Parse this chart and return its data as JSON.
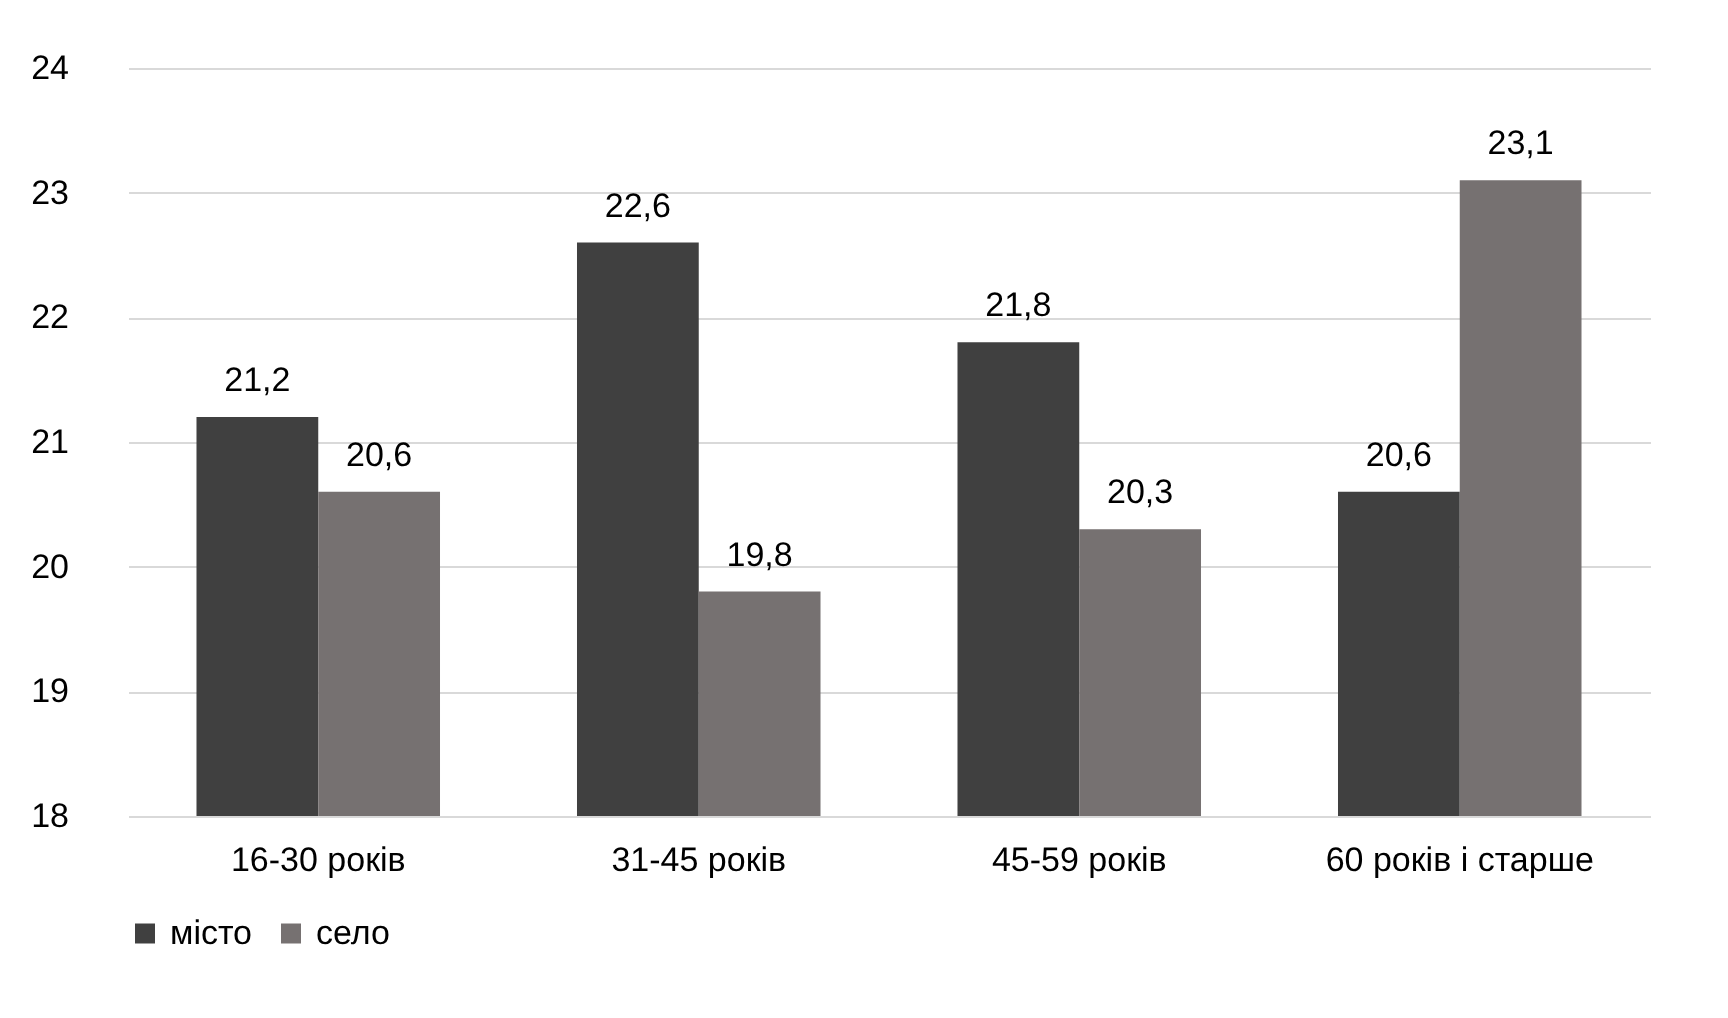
{
  "chart_data": {
    "type": "bar",
    "categories": [
      "16-30 років",
      "31-45 років",
      "45-59 років",
      "60 років і старше"
    ],
    "series": [
      {
        "name": "місто",
        "color": "#404040",
        "values": [
          21.2,
          22.6,
          21.8,
          20.6
        ],
        "value_labels": [
          "21,2",
          "22,6",
          "21,8",
          "20,6"
        ]
      },
      {
        "name": "село",
        "color": "#767171",
        "values": [
          20.6,
          19.8,
          20.3,
          23.1
        ],
        "value_labels": [
          "20,6",
          "19,8",
          "20,3",
          "23,1"
        ]
      }
    ],
    "ylim": [
      18,
      24
    ],
    "yticks": [
      18,
      19,
      20,
      21,
      22,
      23,
      24
    ],
    "grid": "y",
    "legend": "bottom"
  }
}
